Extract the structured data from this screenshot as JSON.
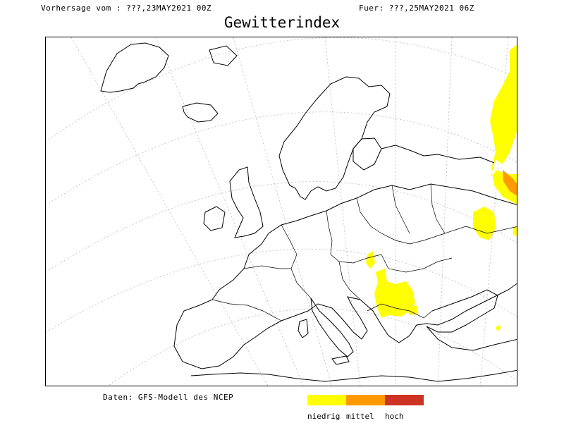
{
  "header": {
    "forecast_from": "Vorhersage vom : ???,23MAY2021 00Z",
    "valid_for": "Fuer: ???,25MAY2021 06Z"
  },
  "title": "Gewitterindex",
  "credit": "Daten: GFS-Modell des NCEP",
  "legend": {
    "items": [
      {
        "label": "niedrig",
        "color": "#ffff00"
      },
      {
        "label": "mittel",
        "color": "#ff9900"
      },
      {
        "label": "hoch",
        "color": "#cc3322"
      }
    ]
  },
  "map": {
    "region": "Europe",
    "graticule": "dotted",
    "risk_areas": [
      {
        "area": "western Russia",
        "level": "niedrig"
      },
      {
        "area": "western Russia",
        "level": "mittel"
      },
      {
        "area": "Ukraine",
        "level": "niedrig"
      },
      {
        "area": "Hungary / Balkans",
        "level": "niedrig"
      },
      {
        "area": "Turkey coast",
        "level": "niedrig"
      }
    ]
  }
}
